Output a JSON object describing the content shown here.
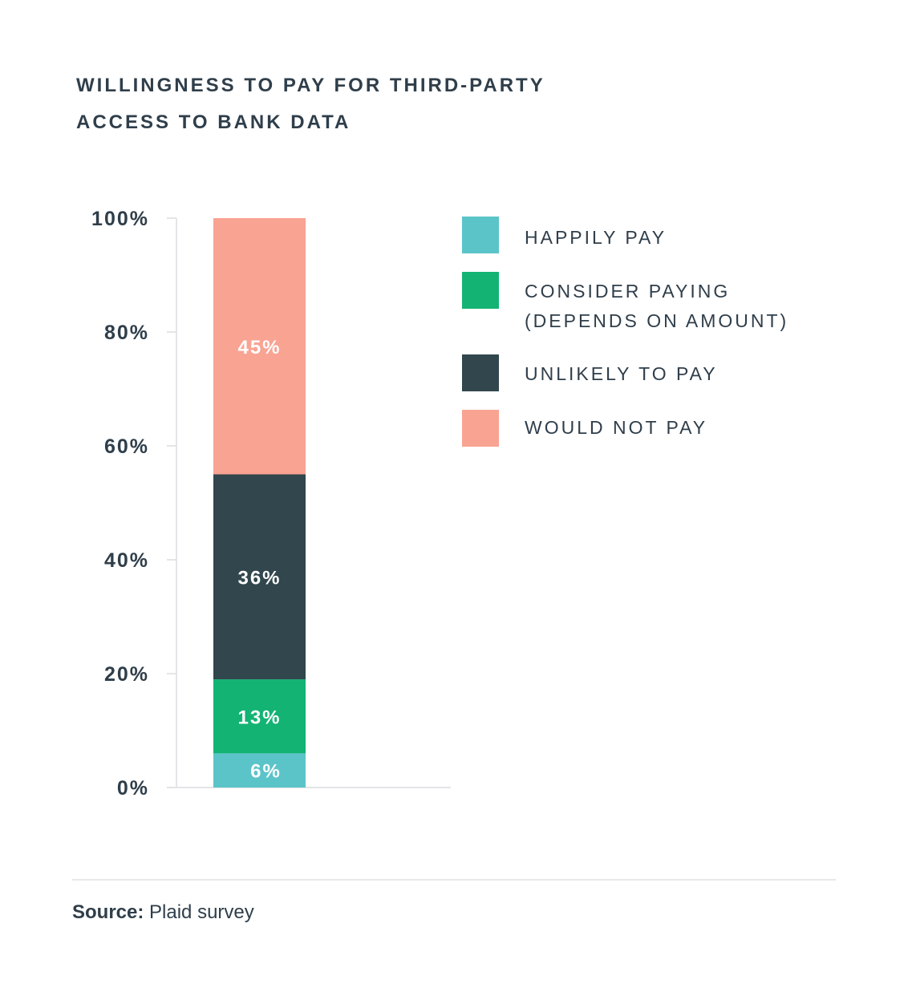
{
  "chart_data": {
    "type": "bar",
    "stacked": true,
    "title": "WILLINGNESS TO PAY FOR THIRD-PARTY ACCESS TO BANK DATA",
    "title_lines": [
      "WILLINGNESS TO PAY FOR THIRD-PARTY",
      "ACCESS TO BANK DATA"
    ],
    "categories": [
      ""
    ],
    "ylim": [
      0,
      100
    ],
    "y_ticks": [
      "0%",
      "20%",
      "40%",
      "60%",
      "80%",
      "100%"
    ],
    "y_tick_values": [
      0,
      20,
      40,
      60,
      80,
      100
    ],
    "grid": false,
    "legend_position": "right",
    "series": [
      {
        "name": "HAPPILY PAY",
        "name_lines": [
          "HAPPILY PAY"
        ],
        "values": [
          6
        ],
        "data_label": "6%",
        "color": "#5bc4c9"
      },
      {
        "name": "CONSIDER PAYING (DEPENDS ON AMOUNT)",
        "name_lines": [
          "CONSIDER PAYING",
          "(DEPENDS ON AMOUNT)"
        ],
        "values": [
          13
        ],
        "data_label": "13%",
        "color": "#13b374"
      },
      {
        "name": "UNLIKELY TO PAY",
        "name_lines": [
          "UNLIKELY TO PAY"
        ],
        "values": [
          36
        ],
        "data_label": "36%",
        "color": "#31464d"
      },
      {
        "name": "WOULD NOT PAY",
        "name_lines": [
          "WOULD NOT PAY"
        ],
        "values": [
          45
        ],
        "data_label": "45%",
        "color": "#f9a393"
      }
    ]
  },
  "footer": {
    "source_label": "Source:",
    "source_value": "Plaid survey"
  }
}
